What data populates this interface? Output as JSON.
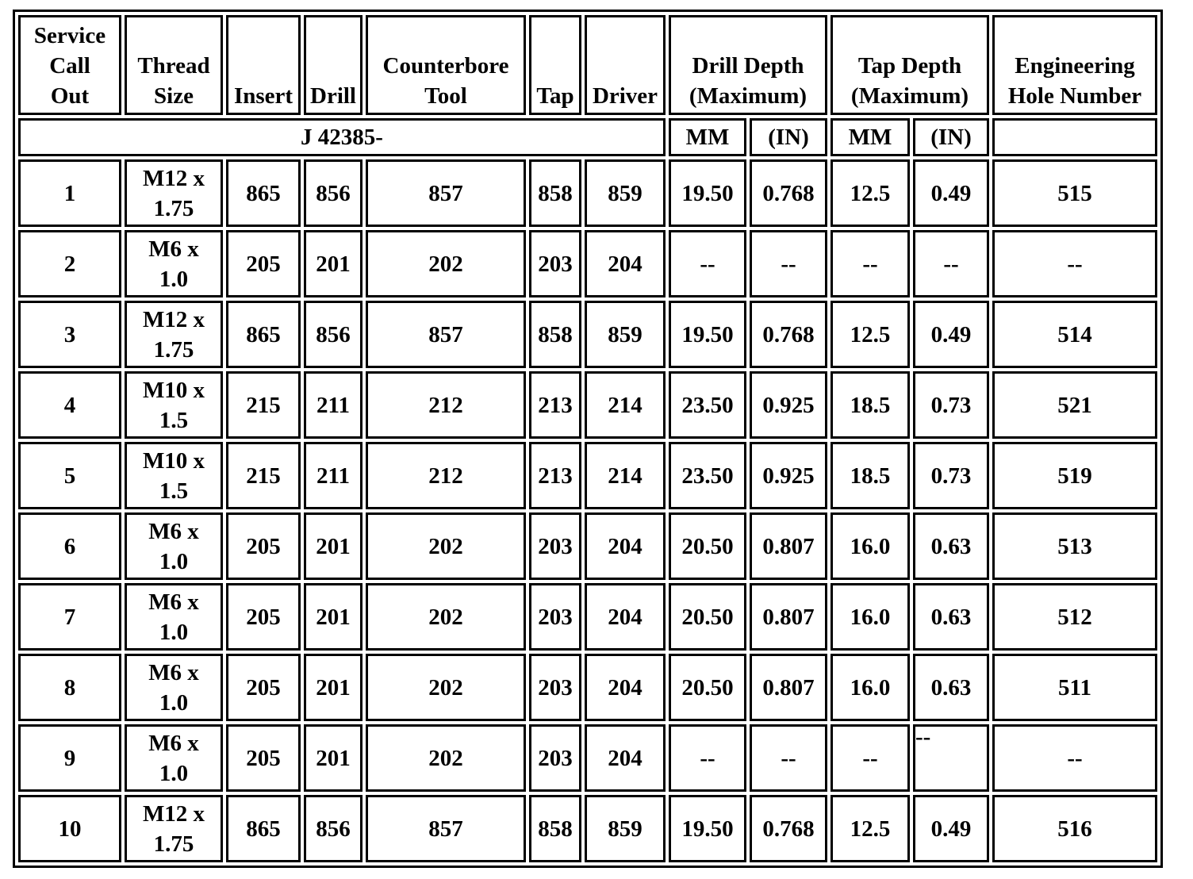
{
  "headers": [
    "Service\nCall\nOut",
    "Thread\nSize",
    "Insert",
    "Drill",
    "Counterbore\nTool",
    "Tap",
    "Driver",
    "Drill Depth\n(Maximum)",
    "Tap Depth\n(Maximum)",
    "Engineering\nHole Number"
  ],
  "subheader": {
    "tool_prefix": "J 42385-",
    "drill_mm": "MM",
    "drill_in": "(IN)",
    "tap_mm": "MM",
    "tap_in": "(IN)",
    "hole": ""
  },
  "rows": [
    [
      "1",
      "M12 x\n1.75",
      "865",
      "856",
      "857",
      "858",
      "859",
      "19.50",
      "0.768",
      "12.5",
      "0.49",
      "515"
    ],
    [
      "2",
      "M6 x\n1.0",
      "205",
      "201",
      "202",
      "203",
      "204",
      "--",
      "--",
      "--",
      "--",
      "--"
    ],
    [
      "3",
      "M12 x\n1.75",
      "865",
      "856",
      "857",
      "858",
      "859",
      "19.50",
      "0.768",
      "12.5",
      "0.49",
      "514"
    ],
    [
      "4",
      "M10 x\n1.5",
      "215",
      "211",
      "212",
      "213",
      "214",
      "23.50",
      "0.925",
      "18.5",
      "0.73",
      "521"
    ],
    [
      "5",
      "M10 x\n1.5",
      "215",
      "211",
      "212",
      "213",
      "214",
      "23.50",
      "0.925",
      "18.5",
      "0.73",
      "519"
    ],
    [
      "6",
      "M6 x\n1.0",
      "205",
      "201",
      "202",
      "203",
      "204",
      "20.50",
      "0.807",
      "16.0",
      "0.63",
      "513"
    ],
    [
      "7",
      "M6 x\n1.0",
      "205",
      "201",
      "202",
      "203",
      "204",
      "20.50",
      "0.807",
      "16.0",
      "0.63",
      "512"
    ],
    [
      "8",
      "M6 x\n1.0",
      "205",
      "201",
      "202",
      "203",
      "204",
      "20.50",
      "0.807",
      "16.0",
      "0.63",
      "511"
    ],
    [
      "9",
      "M6 x\n1.0",
      "205",
      "201",
      "202",
      "203",
      "204",
      "--",
      "--",
      "--",
      "--",
      "--"
    ],
    [
      "10",
      "M12 x\n1.75",
      "865",
      "856",
      "857",
      "858",
      "859",
      "19.50",
      "0.768",
      "12.5",
      "0.49",
      "516"
    ]
  ]
}
